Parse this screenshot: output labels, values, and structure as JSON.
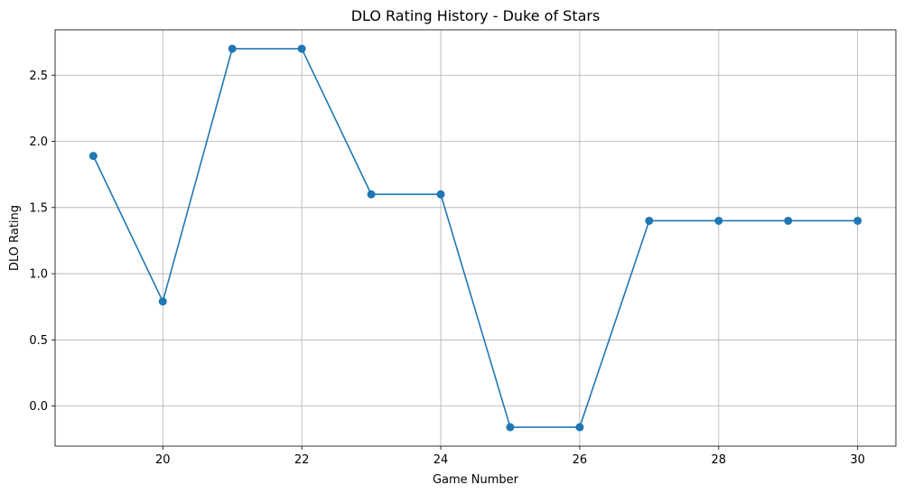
{
  "chart_data": {
    "type": "line",
    "title": "DLO Rating History - Duke of Stars",
    "xlabel": "Game Number",
    "ylabel": "DLO Rating",
    "x": [
      19,
      20,
      21,
      22,
      23,
      24,
      25,
      26,
      27,
      28,
      29,
      30
    ],
    "series": [
      {
        "values": [
          1.89,
          0.79,
          2.7,
          2.7,
          1.6,
          1.6,
          -0.16,
          -0.16,
          1.4,
          1.4,
          1.4,
          1.4
        ],
        "color": "#1f77b4",
        "marker": "circle"
      }
    ],
    "xlim": [
      18.45,
      30.55
    ],
    "ylim": [
      -0.303,
      2.843
    ],
    "xticks": [
      20,
      22,
      24,
      26,
      28,
      30
    ],
    "xtick_labels": [
      "20",
      "22",
      "24",
      "26",
      "28",
      "30"
    ],
    "yticks": [
      0.0,
      0.5,
      1.0,
      1.5,
      2.0,
      2.5
    ],
    "ytick_labels": [
      "0.0",
      "0.5",
      "1.0",
      "1.5",
      "2.0",
      "2.5"
    ],
    "grid": true
  }
}
